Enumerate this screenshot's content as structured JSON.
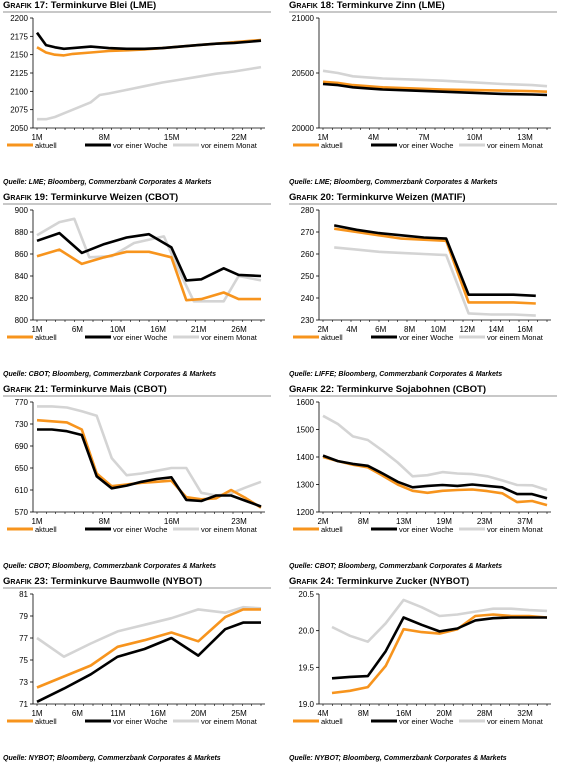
{
  "colors": {
    "aktuell": "#f7941d",
    "woche": "#000000",
    "monat": "#d4d4d4"
  },
  "legend": {
    "aktuell": "aktuell",
    "woche": "vor einer Woche",
    "monat": "vor einem Monat"
  },
  "chart_data": [
    {
      "type": "line",
      "grafik_prefix": "Grafik",
      "number": "17",
      "name": ": Terminkurve Blei (LME)",
      "source": "Quelle: LME; Bloomberg, Commerzbank Corporates & Markets",
      "categories": [
        "1M",
        "8M",
        "15M",
        "22M"
      ],
      "yticks": [
        2050,
        2075,
        2100,
        2125,
        2150,
        2175,
        2200
      ],
      "ylim": [
        2050,
        2200
      ],
      "xlim": [
        0,
        25
      ],
      "series": [
        {
          "name": "aktuell",
          "x": [
            0,
            1,
            2,
            3,
            4,
            6,
            8,
            10,
            12,
            14,
            16,
            18,
            20,
            22,
            24,
            25
          ],
          "values": [
            2160,
            2153,
            2150,
            2149,
            2151,
            2153,
            2155,
            2156,
            2157,
            2159,
            2161,
            2163,
            2165,
            2167,
            2169,
            2170
          ]
        },
        {
          "name": "vor einer Woche",
          "x": [
            0,
            1,
            2,
            3,
            4,
            6,
            8,
            10,
            12,
            14,
            16,
            18,
            20,
            22,
            24,
            25
          ],
          "values": [
            2180,
            2163,
            2160,
            2158,
            2159,
            2161,
            2159,
            2158,
            2158,
            2159,
            2161,
            2163,
            2165,
            2166,
            2168,
            2169
          ]
        },
        {
          "name": "vor einem Monat",
          "x": [
            0,
            1,
            2,
            3,
            4,
            6,
            7,
            8,
            10,
            12,
            14,
            16,
            18,
            20,
            22,
            24,
            25
          ],
          "values": [
            2062,
            2062,
            2065,
            2070,
            2075,
            2085,
            2095,
            2097,
            2102,
            2107,
            2112,
            2116,
            2120,
            2124,
            2127,
            2131,
            2133
          ]
        }
      ]
    },
    {
      "type": "line",
      "grafik_prefix": "Grafik",
      "number": "18",
      "name": ": Terminkurve Zinn (LME)",
      "source": "Quelle: LME; Bloomberg, Commerzbank Corporates & Markets",
      "categories": [
        "1M",
        "4M",
        "7M",
        "10M",
        "13M"
      ],
      "yticks": [
        20000,
        20500,
        21000
      ],
      "ylim": [
        20000,
        21000
      ],
      "xlim": [
        0,
        15
      ],
      "series": [
        {
          "name": "aktuell",
          "x": [
            0,
            1,
            2,
            3,
            4,
            6,
            8,
            10,
            12,
            14,
            15
          ],
          "values": [
            20420,
            20410,
            20390,
            20380,
            20370,
            20360,
            20350,
            20345,
            20340,
            20335,
            20330
          ]
        },
        {
          "name": "vor einer Woche",
          "x": [
            0,
            1,
            2,
            3,
            4,
            6,
            8,
            10,
            12,
            14,
            15
          ],
          "values": [
            20400,
            20390,
            20370,
            20360,
            20350,
            20340,
            20330,
            20320,
            20310,
            20305,
            20300
          ]
        },
        {
          "name": "vor einem Monat",
          "x": [
            0,
            1,
            2,
            3,
            4,
            6,
            8,
            10,
            12,
            14,
            15
          ],
          "values": [
            20520,
            20500,
            20470,
            20460,
            20450,
            20440,
            20430,
            20415,
            20400,
            20390,
            20380
          ]
        }
      ]
    },
    {
      "type": "line",
      "grafik_prefix": "Grafik",
      "number": "19",
      "name": ": Terminkurve Weizen (CBOT)",
      "source": "Quelle: CBOT; Bloomberg, Commerzbank Corporates & Markets",
      "categories": [
        "1M",
        "6M",
        "10M",
        "16M",
        "21M",
        "26M"
      ],
      "yticks": [
        800,
        820,
        840,
        860,
        880,
        900
      ],
      "ylim": [
        800,
        900
      ],
      "xlim": [
        0,
        30
      ],
      "series": [
        {
          "name": "aktuell",
          "x": [
            0,
            3,
            6,
            9,
            12,
            15,
            18,
            20,
            22,
            25,
            27,
            30
          ],
          "values": [
            858,
            864,
            851,
            857,
            862,
            862,
            857,
            818,
            819,
            825,
            819,
            819
          ]
        },
        {
          "name": "vor einer Woche",
          "x": [
            0,
            3,
            6,
            9,
            12,
            15,
            18,
            20,
            22,
            25,
            27,
            30
          ],
          "values": [
            872,
            879,
            861,
            869,
            875,
            878,
            866,
            836,
            837,
            847,
            841,
            840
          ]
        },
        {
          "name": "vor einem Monat",
          "x": [
            0,
            3,
            5,
            7,
            10,
            13,
            17,
            19,
            21,
            23,
            25,
            27,
            30
          ],
          "values": [
            877,
            889,
            892,
            857,
            858,
            870,
            876,
            845,
            817,
            817,
            817,
            840,
            836
          ]
        }
      ]
    },
    {
      "type": "line",
      "grafik_prefix": "Grafik",
      "number": "20",
      "name": ": Terminkurve Weizen (MATIF)",
      "source": "Quelle: LIFFE; Bloomberg, Commerzbank Corporates & Markets",
      "categories": [
        "2M",
        "4M",
        "6M",
        "8M",
        "10M",
        "12M",
        "14M",
        "16M"
      ],
      "yticks": [
        230,
        240,
        250,
        260,
        270,
        280
      ],
      "ylim": [
        230,
        280
      ],
      "xlim": [
        0,
        20
      ],
      "series": [
        {
          "name": "aktuell",
          "x": [
            1,
            3,
            5,
            7,
            9,
            11,
            13,
            15,
            17,
            19
          ],
          "values": [
            271.5,
            270,
            268.5,
            267,
            266.5,
            266,
            238,
            238,
            238,
            237.5
          ]
        },
        {
          "name": "vor einer Woche",
          "x": [
            1,
            3,
            5,
            7,
            9,
            11,
            13,
            15,
            17,
            19
          ],
          "values": [
            273,
            271,
            269.5,
            268.5,
            267.5,
            267,
            241.5,
            241.5,
            241.5,
            241
          ]
        },
        {
          "name": "vor einem Monat",
          "x": [
            1,
            3,
            5,
            7,
            9,
            11,
            13,
            15,
            17,
            19
          ],
          "values": [
            263,
            262,
            261,
            260.5,
            260,
            259.5,
            233,
            232.5,
            232.5,
            232
          ]
        }
      ]
    },
    {
      "type": "line",
      "grafik_prefix": "Grafik",
      "number": "21",
      "name": ": Terminkurve Mais (CBOT)",
      "source": "Quelle: CBOT; Bloomberg, Commerzbank Corporates & Markets",
      "categories": [
        "1M",
        "8M",
        "16M",
        "23M"
      ],
      "yticks": [
        570,
        610,
        650,
        690,
        730,
        770
      ],
      "ylim": [
        570,
        770
      ],
      "xlim": [
        0,
        30
      ],
      "series": [
        {
          "name": "aktuell",
          "x": [
            0,
            2,
            4,
            6,
            8,
            10,
            12,
            14,
            16,
            18,
            20,
            22,
            24,
            26,
            28,
            30
          ],
          "values": [
            737,
            735,
            733,
            720,
            640,
            617,
            620,
            623,
            625,
            627,
            597,
            593,
            595,
            610,
            595,
            578
          ]
        },
        {
          "name": "vor einer Woche",
          "x": [
            0,
            2,
            4,
            6,
            8,
            10,
            12,
            14,
            16,
            18,
            20,
            22,
            24,
            26,
            28,
            30
          ],
          "values": [
            720,
            720,
            717,
            710,
            635,
            613,
            618,
            625,
            630,
            633,
            592,
            590,
            600,
            600,
            590,
            580
          ]
        },
        {
          "name": "vor einem Monat",
          "x": [
            0,
            2,
            4,
            6,
            8,
            10,
            12,
            14,
            16,
            18,
            20,
            22,
            24,
            26,
            28,
            30
          ],
          "values": [
            762,
            762,
            760,
            753,
            745,
            668,
            637,
            640,
            645,
            650,
            650,
            605,
            600,
            604,
            615,
            625
          ]
        }
      ]
    },
    {
      "type": "line",
      "grafik_prefix": "Grafik",
      "number": "22",
      "name": ": Terminkurve Sojabohnen (CBOT)",
      "source": "Quelle: CBOT; Bloomberg, Commerzbank Corporates & Markets",
      "categories": [
        "2M",
        "8M",
        "13M",
        "19M",
        "23M",
        "37M"
      ],
      "yticks": [
        1200,
        1300,
        1400,
        1500,
        1600
      ],
      "ylim": [
        1200,
        1600
      ],
      "xlim": [
        0,
        30
      ],
      "series": [
        {
          "name": "aktuell",
          "x": [
            0,
            2,
            4,
            6,
            8,
            10,
            12,
            14,
            16,
            18,
            20,
            22,
            24,
            26,
            28,
            30
          ],
          "values": [
            1400,
            1385,
            1372,
            1362,
            1332,
            1300,
            1277,
            1270,
            1277,
            1280,
            1282,
            1276,
            1268,
            1236,
            1240,
            1225
          ]
        },
        {
          "name": "vor einer Woche",
          "x": [
            0,
            2,
            4,
            6,
            8,
            10,
            12,
            14,
            16,
            18,
            20,
            22,
            24,
            26,
            28,
            30
          ],
          "values": [
            1405,
            1385,
            1375,
            1368,
            1340,
            1310,
            1290,
            1295,
            1298,
            1295,
            1300,
            1295,
            1290,
            1265,
            1265,
            1250
          ]
        },
        {
          "name": "vor einem Monat",
          "x": [
            0,
            2,
            4,
            6,
            8,
            10,
            12,
            14,
            16,
            18,
            20,
            22,
            24,
            26,
            28,
            30
          ],
          "values": [
            1550,
            1520,
            1475,
            1462,
            1423,
            1380,
            1330,
            1334,
            1345,
            1340,
            1338,
            1330,
            1315,
            1298,
            1297,
            1280
          ]
        }
      ]
    },
    {
      "type": "line",
      "grafik_prefix": "Grafik",
      "number": "23",
      "name": ": Terminkurve Baumwolle (NYBOT)",
      "source": "Quelle: NYBOT; Bloomberg, Commerzbank Corporates & Markets",
      "categories": [
        "1M",
        "6M",
        "11M",
        "16M",
        "20M",
        "25M"
      ],
      "yticks": [
        71,
        73,
        75,
        77,
        79,
        81
      ],
      "ylim": [
        71,
        81
      ],
      "xlim": [
        0,
        25
      ],
      "series": [
        {
          "name": "aktuell",
          "x": [
            0,
            3,
            6,
            9,
            12,
            15,
            18,
            21,
            23,
            25
          ],
          "values": [
            72.5,
            73.5,
            74.5,
            76.2,
            76.8,
            77.5,
            76.7,
            78.9,
            79.6,
            79.6
          ]
        },
        {
          "name": "vor einer Woche",
          "x": [
            0,
            3,
            6,
            9,
            12,
            15,
            18,
            21,
            23,
            25
          ],
          "values": [
            71.2,
            72.4,
            73.7,
            75.3,
            76.0,
            77.0,
            75.4,
            77.8,
            78.4,
            78.4
          ]
        },
        {
          "name": "vor einem Monat",
          "x": [
            0,
            3,
            6,
            9,
            12,
            15,
            18,
            21,
            23,
            25
          ],
          "values": [
            77,
            75.3,
            76.5,
            77.6,
            78.2,
            78.8,
            79.6,
            79.3,
            79.8,
            79.7
          ]
        }
      ]
    },
    {
      "type": "line",
      "grafik_prefix": "Grafik",
      "number": "24",
      "name": ": Terminkurve Zucker (NYBOT)",
      "source": "Quelle: NYBOT; Bloomberg, Commerzbank Corporates & Markets",
      "categories": [
        "4M",
        "8M",
        "16M",
        "20M",
        "28M",
        "32M"
      ],
      "yticks": [
        19.0,
        19.5,
        20.0,
        20.5
      ],
      "yticklabels": [
        "19.0",
        "19.5",
        "20.0",
        "20.5"
      ],
      "ylim": [
        19.0,
        20.5
      ],
      "xlim": [
        0,
        25
      ],
      "series": [
        {
          "name": "aktuell",
          "x": [
            1,
            3,
            5,
            7,
            9,
            11,
            13,
            15,
            17,
            19,
            21,
            23,
            25
          ],
          "values": [
            19.15,
            19.18,
            19.23,
            19.52,
            20.02,
            19.98,
            19.96,
            20.02,
            20.2,
            20.22,
            20.2,
            20.2,
            20.18
          ]
        },
        {
          "name": "vor einer Woche",
          "x": [
            1,
            3,
            5,
            7,
            9,
            11,
            13,
            15,
            17,
            19,
            21,
            23,
            25
          ],
          "values": [
            19.35,
            19.37,
            19.38,
            19.72,
            20.18,
            20.08,
            19.99,
            20.03,
            20.14,
            20.17,
            20.18,
            20.18,
            20.18
          ]
        },
        {
          "name": "vor einem Monat",
          "x": [
            1,
            3,
            5,
            7,
            9,
            11,
            13,
            15,
            17,
            19,
            21,
            23,
            25
          ],
          "values": [
            20.05,
            19.93,
            19.85,
            20.1,
            20.42,
            20.32,
            20.2,
            20.22,
            20.26,
            20.3,
            20.3,
            20.28,
            20.27
          ]
        }
      ]
    }
  ]
}
